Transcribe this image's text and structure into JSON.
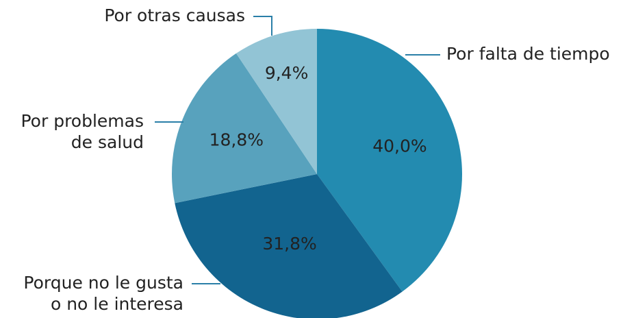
{
  "chart_data": {
    "type": "pie",
    "categories": [
      [
        "Por falta de tiempo"
      ],
      [
        "Porque no le gusta",
        "o no le interesa"
      ],
      [
        "Por problemas",
        "de salud"
      ],
      [
        "Por otras causas"
      ]
    ],
    "values": [
      40.0,
      31.8,
      18.8,
      9.4
    ],
    "value_labels": [
      "40,0%",
      "31,8%",
      "18,8%",
      "9,4%"
    ],
    "colors": [
      "#238bb0",
      "#12648f",
      "#58a2bd",
      "#92c4d5"
    ]
  }
}
